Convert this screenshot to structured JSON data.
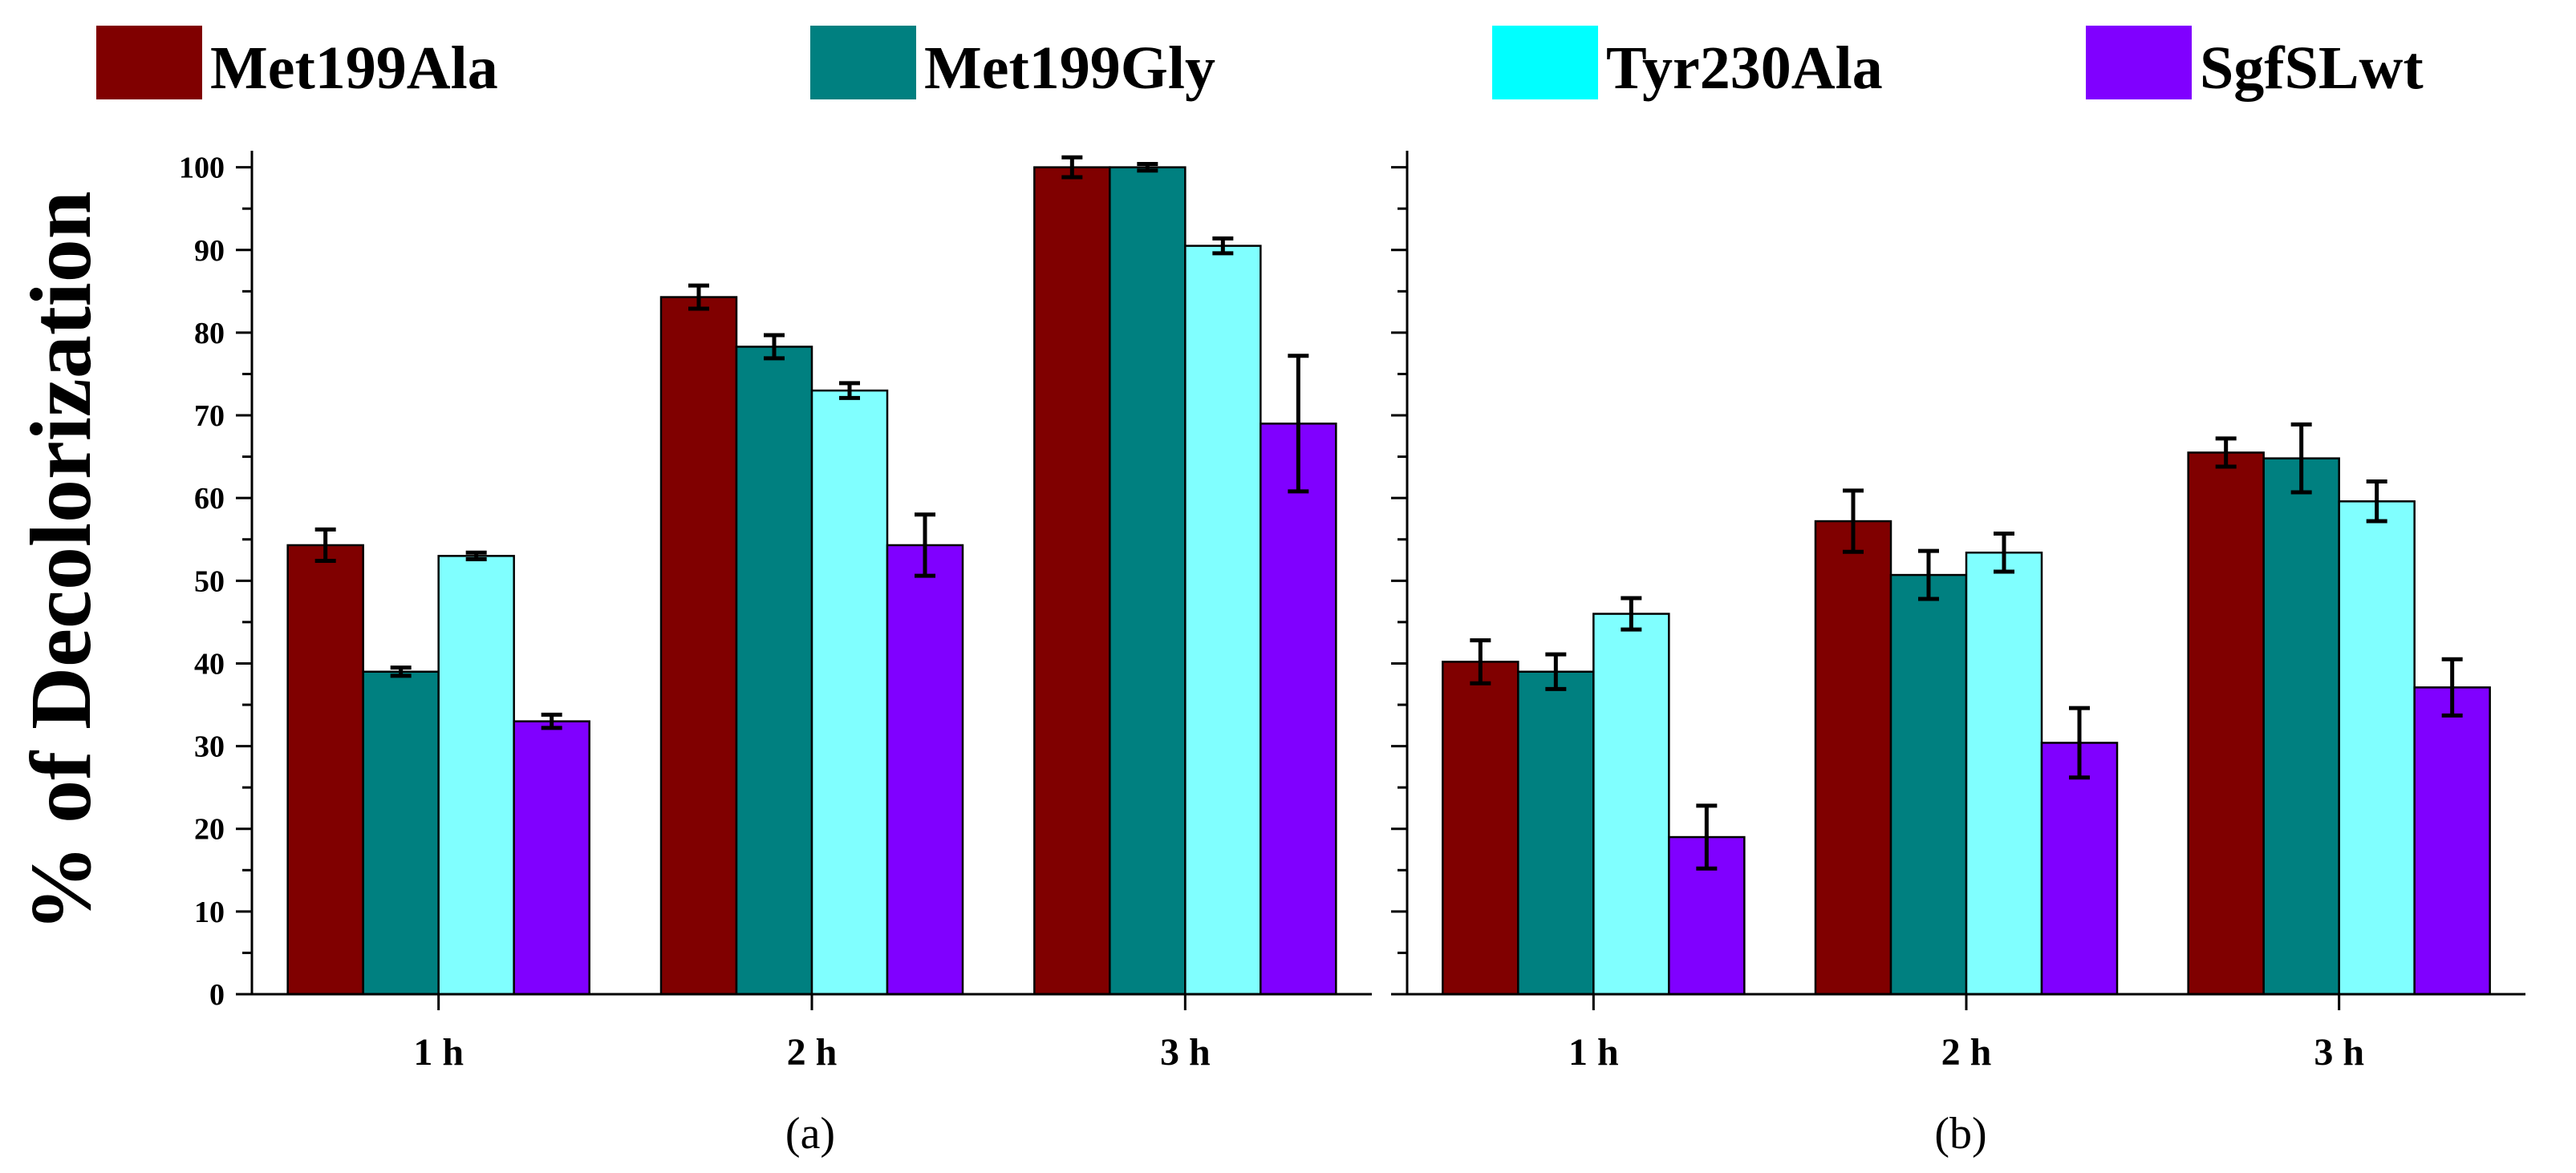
{
  "colors": {
    "Met199Ala": "#800000",
    "Met199Gly": "#008080",
    "Tyr230Ala": "#80FFFF",
    "SgfSLwt": "#8000FF",
    "legend_Tyr230Ala": "#00FFFF"
  },
  "legend": [
    {
      "name": "Met199Ala",
      "color": "#800000"
    },
    {
      "name": "Met199Gly",
      "color": "#008080"
    },
    {
      "name": "Tyr230Ala",
      "color": "#00FFFF"
    },
    {
      "name": "SgfSLwt",
      "color": "#8000FF"
    }
  ],
  "ylabel": "% of Decolorization",
  "chart_data": [
    {
      "type": "bar",
      "title": "",
      "panel_label": "(a)",
      "xlabel": "",
      "ylabel": "% of Decolorization",
      "ylim": [
        0,
        102
      ],
      "yticks": [
        0,
        10,
        20,
        30,
        40,
        50,
        60,
        70,
        80,
        90,
        100
      ],
      "categories": [
        "1 h",
        "2 h",
        "3 h"
      ],
      "series": [
        {
          "name": "Met199Ala",
          "color": "#800000",
          "values": [
            54.3,
            84.3,
            100
          ],
          "errors": [
            1.9,
            1.4,
            1.2
          ]
        },
        {
          "name": "Met199Gly",
          "color": "#008080",
          "values": [
            39.0,
            78.3,
            100
          ],
          "errors": [
            0.5,
            1.4,
            0.4
          ]
        },
        {
          "name": "Tyr230Ala",
          "color": "#80FFFF",
          "values": [
            53.0,
            73.0,
            90.5
          ],
          "errors": [
            0.4,
            0.9,
            0.9
          ]
        },
        {
          "name": "SgfSLwt",
          "color": "#8000FF",
          "values": [
            33.0,
            54.3,
            69.0
          ],
          "errors": [
            0.8,
            3.7,
            8.2
          ]
        }
      ]
    },
    {
      "type": "bar",
      "title": "",
      "panel_label": "(b)",
      "xlabel": "",
      "ylabel": "",
      "ylim": [
        0,
        102
      ],
      "categories": [
        "1 h",
        "2 h",
        "3 h"
      ],
      "series": [
        {
          "name": "Met199Ala",
          "color": "#800000",
          "values": [
            40.2,
            57.2,
            65.5
          ],
          "errors": [
            2.6,
            3.7,
            1.7
          ]
        },
        {
          "name": "Met199Gly",
          "color": "#008080",
          "values": [
            39.0,
            50.7,
            64.8
          ],
          "errors": [
            2.1,
            2.9,
            4.1
          ]
        },
        {
          "name": "Tyr230Ala",
          "color": "#80FFFF",
          "values": [
            46.0,
            53.4,
            59.6
          ],
          "errors": [
            1.9,
            2.3,
            2.4
          ]
        },
        {
          "name": "SgfSLwt",
          "color": "#8000FF",
          "values": [
            19.0,
            30.4,
            37.1
          ],
          "errors": [
            3.8,
            4.2,
            3.4
          ]
        }
      ]
    }
  ]
}
